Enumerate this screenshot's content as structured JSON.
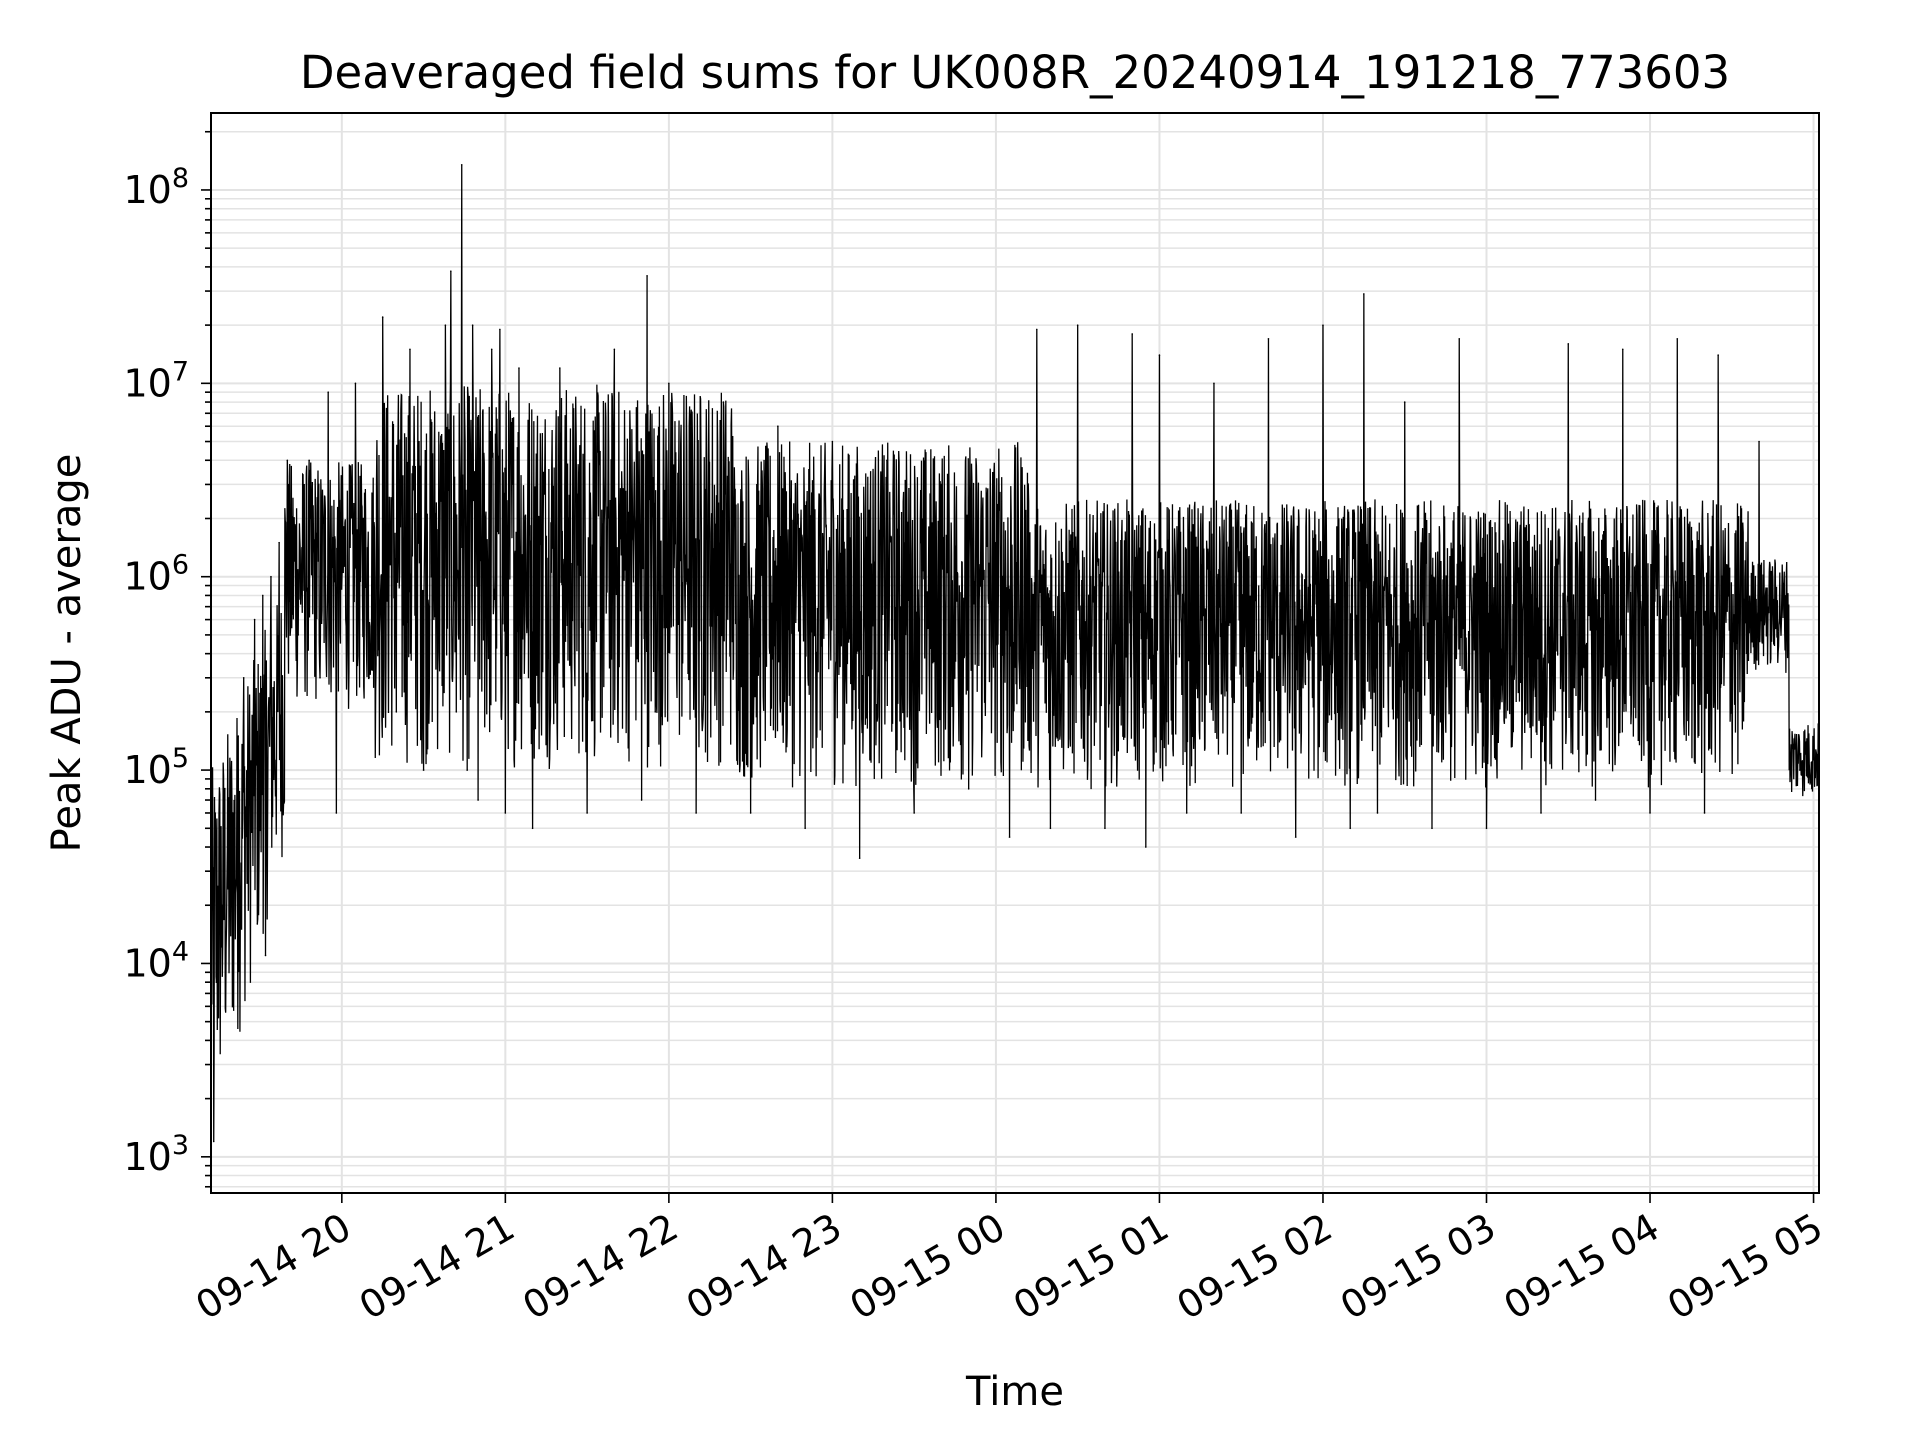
{
  "chart_data": {
    "type": "line",
    "title": "Deaveraged field sums for UK008R_20240914_191218_773603",
    "xlabel": "Time",
    "ylabel": "Peak ADU - average",
    "yscale": "log",
    "ylim": [
      650,
      250000000
    ],
    "xlim": [
      "2024-09-14 19:12",
      "2024-09-15 05:02"
    ],
    "x_tick_labels": [
      "09-14 20",
      "09-14 21",
      "09-14 22",
      "09-14 23",
      "09-15 00",
      "09-15 01",
      "09-15 02",
      "09-15 03",
      "09-15 04",
      "09-15 05"
    ],
    "x_tick_times": [
      "2024-09-14 20:00",
      "2024-09-14 21:00",
      "2024-09-14 22:00",
      "2024-09-14 23:00",
      "2024-09-15 00:00",
      "2024-09-15 01:00",
      "2024-09-15 02:00",
      "2024-09-15 03:00",
      "2024-09-15 04:00",
      "2024-09-15 05:00"
    ],
    "y_ticks": [
      {
        "value": 1000,
        "base": "10",
        "exp": "3"
      },
      {
        "value": 10000,
        "base": "10",
        "exp": "4"
      },
      {
        "value": 100000,
        "base": "10",
        "exp": "5"
      },
      {
        "value": 1000000,
        "base": "10",
        "exp": "6"
      },
      {
        "value": 10000000,
        "base": "10",
        "exp": "7"
      },
      {
        "value": 100000000,
        "base": "10",
        "exp": "8"
      }
    ],
    "grid": true,
    "line_color": "#000000",
    "grid_color": "#e3e3e3",
    "series": [
      {
        "values_xy": [
          [
            "2024-09-14 19:12",
            80000
          ],
          [
            "2024-09-14 19:13",
            1200
          ],
          [
            "2024-09-14 19:14",
            8000
          ],
          [
            "2024-09-14 19:16",
            20000
          ],
          [
            "2024-09-14 19:18",
            40000
          ],
          [
            "2024-09-14 19:20",
            60000
          ],
          [
            "2024-09-14 19:22",
            150000
          ],
          [
            "2024-09-14 19:24",
            300000
          ],
          [
            "2024-09-14 19:26",
            100000
          ],
          [
            "2024-09-14 19:28",
            600000
          ],
          [
            "2024-09-14 19:29",
            16000
          ],
          [
            "2024-09-14 19:31",
            800000
          ],
          [
            "2024-09-14 19:32",
            11000
          ],
          [
            "2024-09-14 19:34",
            1000000
          ],
          [
            "2024-09-14 19:37",
            1500000
          ],
          [
            "2024-09-14 19:40",
            4000000
          ],
          [
            "2024-09-14 19:44",
            500000
          ],
          [
            "2024-09-14 19:48",
            4000000
          ],
          [
            "2024-09-14 19:52",
            300000
          ],
          [
            "2024-09-14 19:55",
            9000000
          ],
          [
            "2024-09-14 19:58",
            60000
          ],
          [
            "2024-09-14 20:05",
            10000000
          ],
          [
            "2024-09-14 20:10",
            300000
          ],
          [
            "2024-09-14 20:15",
            22000000
          ],
          [
            "2024-09-14 20:20",
            200000
          ],
          [
            "2024-09-14 20:25",
            15000000
          ],
          [
            "2024-09-14 20:30",
            100000
          ],
          [
            "2024-09-14 20:38",
            20000000
          ],
          [
            "2024-09-14 20:40",
            38000000
          ],
          [
            "2024-09-14 20:42",
            200000
          ],
          [
            "2024-09-14 20:44",
            135000000
          ],
          [
            "2024-09-14 20:46",
            100000
          ],
          [
            "2024-09-14 20:48",
            20000000
          ],
          [
            "2024-09-14 20:50",
            70000
          ],
          [
            "2024-09-14 20:55",
            15000000
          ],
          [
            "2024-09-14 21:00",
            60000
          ],
          [
            "2024-09-14 20:58",
            19000000
          ],
          [
            "2024-09-14 21:05",
            12000000
          ],
          [
            "2024-09-14 21:10",
            50000
          ],
          [
            "2024-09-14 21:20",
            12000000
          ],
          [
            "2024-09-14 21:30",
            60000
          ],
          [
            "2024-09-14 21:40",
            15000000
          ],
          [
            "2024-09-14 21:50",
            70000
          ],
          [
            "2024-09-14 21:52",
            36000000
          ],
          [
            "2024-09-14 21:55",
            200000
          ],
          [
            "2024-09-14 22:00",
            10000000
          ],
          [
            "2024-09-14 22:10",
            60000
          ],
          [
            "2024-09-14 22:20",
            8000000
          ],
          [
            "2024-09-14 22:30",
            60000
          ],
          [
            "2024-09-14 22:40",
            6000000
          ],
          [
            "2024-09-14 22:50",
            50000
          ],
          [
            "2024-09-14 23:00",
            5000000
          ],
          [
            "2024-09-14 23:10",
            35000
          ],
          [
            "2024-09-14 23:20",
            4000000
          ],
          [
            "2024-09-14 23:30",
            60000
          ],
          [
            "2024-09-14 23:40",
            3000000
          ],
          [
            "2024-09-14 23:50",
            80000
          ],
          [
            "2024-09-15 00:00",
            1500000
          ],
          [
            "2024-09-15 00:05",
            45000
          ],
          [
            "2024-09-15 00:15",
            19000000
          ],
          [
            "2024-09-15 00:20",
            50000
          ],
          [
            "2024-09-15 00:30",
            20000000
          ],
          [
            "2024-09-15 00:40",
            50000
          ],
          [
            "2024-09-15 00:50",
            18000000
          ],
          [
            "2024-09-15 00:55",
            40000
          ],
          [
            "2024-09-15 01:00",
            14000000
          ],
          [
            "2024-09-15 01:10",
            60000
          ],
          [
            "2024-09-15 01:20",
            10000000
          ],
          [
            "2024-09-15 01:30",
            60000
          ],
          [
            "2024-09-15 01:40",
            17000000
          ],
          [
            "2024-09-15 01:50",
            45000
          ],
          [
            "2024-09-15 02:00",
            20000000
          ],
          [
            "2024-09-15 02:10",
            50000
          ],
          [
            "2024-09-15 02:15",
            29000000
          ],
          [
            "2024-09-15 02:20",
            60000
          ],
          [
            "2024-09-15 02:30",
            8000000
          ],
          [
            "2024-09-15 02:40",
            50000
          ],
          [
            "2024-09-15 02:50",
            17000000
          ],
          [
            "2024-09-15 03:00",
            50000
          ],
          [
            "2024-09-15 03:10",
            1500000
          ],
          [
            "2024-09-15 03:20",
            60000
          ],
          [
            "2024-09-15 03:30",
            16000000
          ],
          [
            "2024-09-15 03:40",
            70000
          ],
          [
            "2024-09-15 03:50",
            15000000
          ],
          [
            "2024-09-15 04:00",
            60000
          ],
          [
            "2024-09-15 04:10",
            17000000
          ],
          [
            "2024-09-15 04:20",
            60000
          ],
          [
            "2024-09-15 04:25",
            14000000
          ],
          [
            "2024-09-15 04:30",
            300000
          ],
          [
            "2024-09-15 04:40",
            5000000
          ],
          [
            "2024-09-15 04:50",
            1000000
          ],
          [
            "2024-09-15 04:55",
            100000
          ],
          [
            "2024-09-15 05:02",
            90000
          ]
        ]
      }
    ]
  }
}
